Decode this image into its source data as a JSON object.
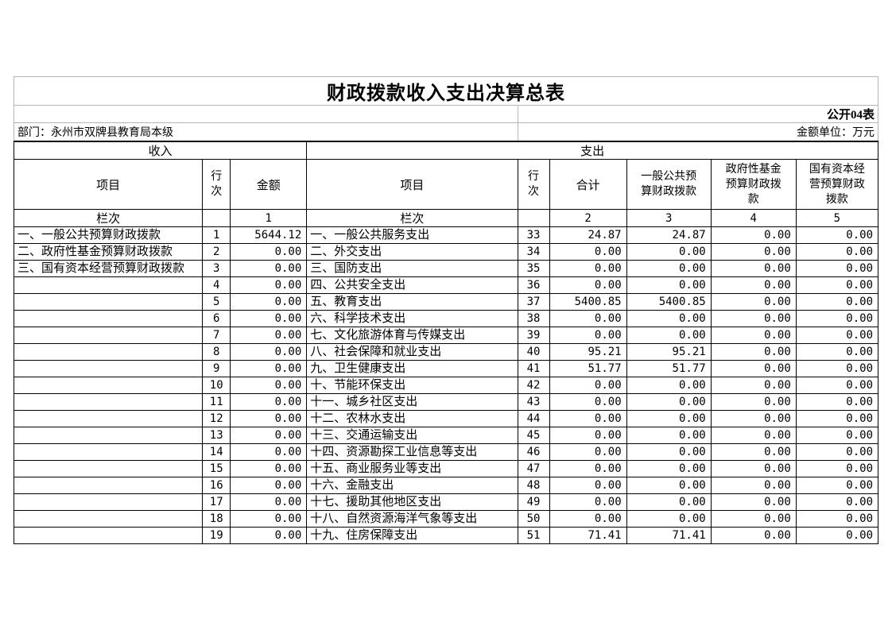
{
  "title": "财政拨款收入支出决算总表",
  "meta": {
    "public_tag": "公开04表",
    "department": "部门：永州市双牌县教育局本级",
    "unit": "金额单位：万元"
  },
  "sections": {
    "revenue": "收入",
    "expenditure": "支出"
  },
  "headers": {
    "item": "项目",
    "line_no": "行次",
    "amount": "金额",
    "total": "合计",
    "general_budget": "一般公共预算财政拨款",
    "gov_fund": "政府性基金预算财政拨款",
    "state_capital": "国有资本经营预算财政拨款",
    "column_label": "栏次",
    "col_nums": [
      "1",
      "2",
      "3",
      "4",
      "5"
    ]
  },
  "rows": [
    {
      "rev_item": "一、一般公共预算财政拨款",
      "rev_line": "1",
      "rev_amt": "5644.12",
      "exp_item": "一、一般公共服务支出",
      "exp_line": "33",
      "exp_total": "24.87",
      "exp_general": "24.87",
      "exp_govfund": "0.00",
      "exp_statecap": "0.00"
    },
    {
      "rev_item": "二、政府性基金预算财政拨款",
      "rev_line": "2",
      "rev_amt": "0.00",
      "exp_item": "二、外交支出",
      "exp_line": "34",
      "exp_total": "0.00",
      "exp_general": "0.00",
      "exp_govfund": "0.00",
      "exp_statecap": "0.00"
    },
    {
      "rev_item": "三、国有资本经营预算财政拨款",
      "rev_line": "3",
      "rev_amt": "0.00",
      "exp_item": "三、国防支出",
      "exp_line": "35",
      "exp_total": "0.00",
      "exp_general": "0.00",
      "exp_govfund": "0.00",
      "exp_statecap": "0.00"
    },
    {
      "rev_item": "",
      "rev_line": "4",
      "rev_amt": "0.00",
      "exp_item": "四、公共安全支出",
      "exp_line": "36",
      "exp_total": "0.00",
      "exp_general": "0.00",
      "exp_govfund": "0.00",
      "exp_statecap": "0.00"
    },
    {
      "rev_item": "",
      "rev_line": "5",
      "rev_amt": "0.00",
      "exp_item": "五、教育支出",
      "exp_line": "37",
      "exp_total": "5400.85",
      "exp_general": "5400.85",
      "exp_govfund": "0.00",
      "exp_statecap": "0.00"
    },
    {
      "rev_item": "",
      "rev_line": "6",
      "rev_amt": "0.00",
      "exp_item": "六、科学技术支出",
      "exp_line": "38",
      "exp_total": "0.00",
      "exp_general": "0.00",
      "exp_govfund": "0.00",
      "exp_statecap": "0.00"
    },
    {
      "rev_item": "",
      "rev_line": "7",
      "rev_amt": "0.00",
      "exp_item": "七、文化旅游体育与传媒支出",
      "exp_line": "39",
      "exp_total": "0.00",
      "exp_general": "0.00",
      "exp_govfund": "0.00",
      "exp_statecap": "0.00"
    },
    {
      "rev_item": "",
      "rev_line": "8",
      "rev_amt": "0.00",
      "exp_item": "八、社会保障和就业支出",
      "exp_line": "40",
      "exp_total": "95.21",
      "exp_general": "95.21",
      "exp_govfund": "0.00",
      "exp_statecap": "0.00"
    },
    {
      "rev_item": "",
      "rev_line": "9",
      "rev_amt": "0.00",
      "exp_item": "九、卫生健康支出",
      "exp_line": "41",
      "exp_total": "51.77",
      "exp_general": "51.77",
      "exp_govfund": "0.00",
      "exp_statecap": "0.00"
    },
    {
      "rev_item": "",
      "rev_line": "10",
      "rev_amt": "0.00",
      "exp_item": "十、节能环保支出",
      "exp_line": "42",
      "exp_total": "0.00",
      "exp_general": "0.00",
      "exp_govfund": "0.00",
      "exp_statecap": "0.00"
    },
    {
      "rev_item": "",
      "rev_line": "11",
      "rev_amt": "0.00",
      "exp_item": "十一、城乡社区支出",
      "exp_line": "43",
      "exp_total": "0.00",
      "exp_general": "0.00",
      "exp_govfund": "0.00",
      "exp_statecap": "0.00"
    },
    {
      "rev_item": "",
      "rev_line": "12",
      "rev_amt": "0.00",
      "exp_item": "十二、农林水支出",
      "exp_line": "44",
      "exp_total": "0.00",
      "exp_general": "0.00",
      "exp_govfund": "0.00",
      "exp_statecap": "0.00"
    },
    {
      "rev_item": "",
      "rev_line": "13",
      "rev_amt": "0.00",
      "exp_item": "十三、交通运输支出",
      "exp_line": "45",
      "exp_total": "0.00",
      "exp_general": "0.00",
      "exp_govfund": "0.00",
      "exp_statecap": "0.00"
    },
    {
      "rev_item": "",
      "rev_line": "14",
      "rev_amt": "0.00",
      "exp_item": "十四、资源勘探工业信息等支出",
      "exp_line": "46",
      "exp_total": "0.00",
      "exp_general": "0.00",
      "exp_govfund": "0.00",
      "exp_statecap": "0.00"
    },
    {
      "rev_item": "",
      "rev_line": "15",
      "rev_amt": "0.00",
      "exp_item": "十五、商业服务业等支出",
      "exp_line": "47",
      "exp_total": "0.00",
      "exp_general": "0.00",
      "exp_govfund": "0.00",
      "exp_statecap": "0.00"
    },
    {
      "rev_item": "",
      "rev_line": "16",
      "rev_amt": "0.00",
      "exp_item": "十六、金融支出",
      "exp_line": "48",
      "exp_total": "0.00",
      "exp_general": "0.00",
      "exp_govfund": "0.00",
      "exp_statecap": "0.00"
    },
    {
      "rev_item": "",
      "rev_line": "17",
      "rev_amt": "0.00",
      "exp_item": "十七、援助其他地区支出",
      "exp_line": "49",
      "exp_total": "0.00",
      "exp_general": "0.00",
      "exp_govfund": "0.00",
      "exp_statecap": "0.00"
    },
    {
      "rev_item": "",
      "rev_line": "18",
      "rev_amt": "0.00",
      "exp_item": "十八、自然资源海洋气象等支出",
      "exp_line": "50",
      "exp_total": "0.00",
      "exp_general": "0.00",
      "exp_govfund": "0.00",
      "exp_statecap": "0.00"
    },
    {
      "rev_item": "",
      "rev_line": "19",
      "rev_amt": "0.00",
      "exp_item": "十九、住房保障支出",
      "exp_line": "51",
      "exp_total": "71.41",
      "exp_general": "71.41",
      "exp_govfund": "0.00",
      "exp_statecap": "0.00"
    }
  ]
}
